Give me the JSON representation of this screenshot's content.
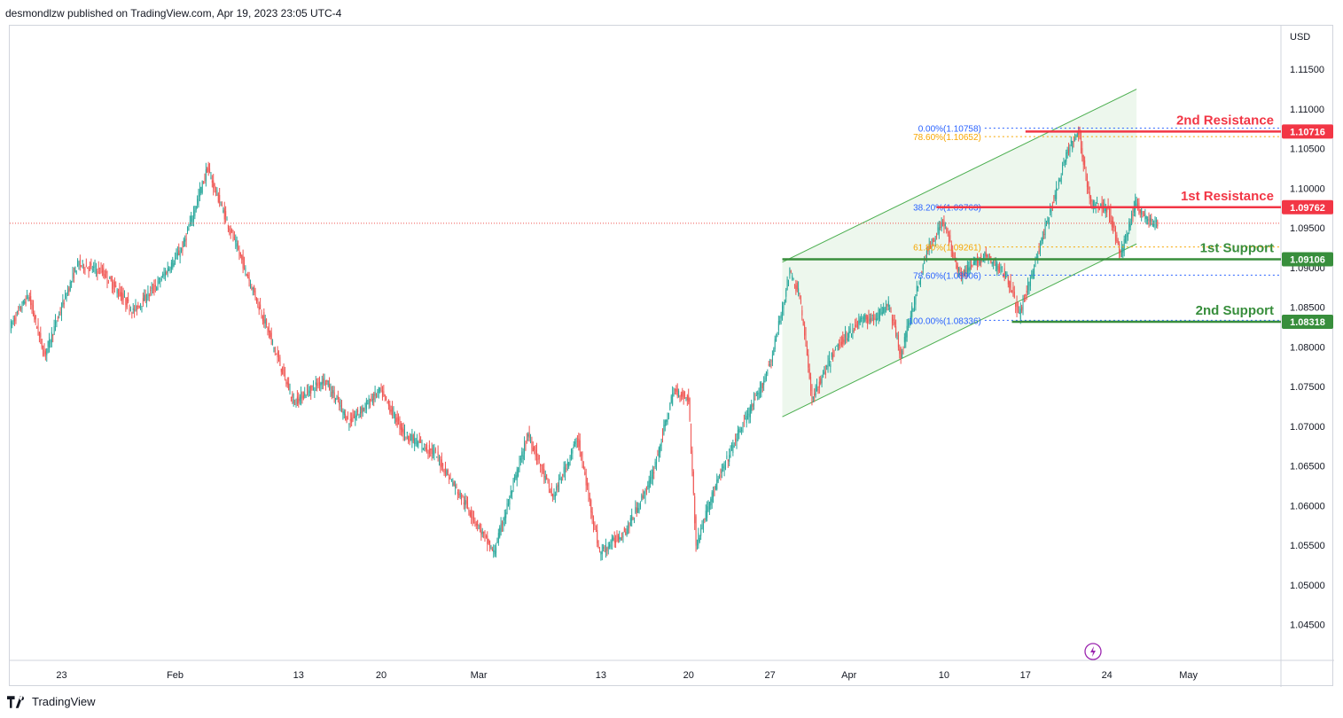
{
  "header": {
    "publisher": "desmondlzw published on TradingView.com, Apr 19, 2023 23:05 UTC-4"
  },
  "footer": {
    "brand": "TradingView"
  },
  "colors": {
    "bull": "#26a69a",
    "bear": "#ef5350",
    "resistance": "#f23645",
    "support": "#388e3c",
    "channel": "#4caf50",
    "fib_blue": "#2962ff",
    "fib_orange": "#f7a600"
  },
  "chart_data": {
    "type": "candlestick",
    "symbol_currency": "USD",
    "ylim": [
      1.0405,
      1.1205
    ],
    "y_ticks": [
      1.045,
      1.05,
      1.055,
      1.06,
      1.065,
      1.07,
      1.075,
      1.08,
      1.085,
      1.09,
      1.095,
      1.1,
      1.105,
      1.11,
      1.115
    ],
    "y_tick_labels": [
      "1.04500",
      "1.05000",
      "1.05500",
      "1.06000",
      "1.06500",
      "1.07000",
      "1.07500",
      "1.08000",
      "1.08500",
      "1.09000",
      "1.09500",
      "1.10000",
      "1.10500",
      "1.11000",
      "1.11500"
    ],
    "x_ticks": [
      "23",
      "Feb",
      "13",
      "20",
      "Mar",
      "13",
      "20",
      "27",
      "Apr",
      "10",
      "17",
      "24",
      "May"
    ],
    "x_tick_bars": [
      42,
      134,
      234,
      301,
      380,
      479,
      550,
      616,
      680,
      757,
      823,
      889,
      955
    ],
    "bars_total": 1030,
    "current_price": 1.0956,
    "levels": [
      {
        "name": "2nd Resistance",
        "value": 1.10716,
        "label": "1.10716",
        "kind": "resistance",
        "from_bar": 823
      },
      {
        "name": "1st Resistance",
        "value": 1.09762,
        "label": "1.09762",
        "kind": "resistance",
        "from_bar": 751
      },
      {
        "name": "1st Support",
        "value": 1.09106,
        "label": "1.09106",
        "kind": "support",
        "from_bar": 626
      },
      {
        "name": "2nd Support",
        "value": 1.08318,
        "label": "1.08318",
        "kind": "support",
        "from_bar": 812
      }
    ],
    "channel": {
      "upper": [
        [
          626,
          1.0907
        ],
        [
          913,
          1.1125
        ]
      ],
      "lower": [
        [
          626,
          1.0712
        ],
        [
          913,
          1.093
        ]
      ],
      "box_end_bar": 913
    },
    "fibonacci": [
      {
        "label": "0.00%(1.10758)",
        "value": 1.10758,
        "color": "blue"
      },
      {
        "label": "100.00%(1.08336)",
        "value": 1.08336,
        "color": "blue"
      },
      {
        "label": "38.20%(1.09763)",
        "value": 1.09763,
        "color": "blue"
      },
      {
        "label": "61.80%(1.09261)",
        "value": 1.09261,
        "color": "orange"
      },
      {
        "label": "78.60%(1.08906)",
        "value": 1.08906,
        "color": "blue"
      },
      {
        "label": "78.60%(1.10652)",
        "value": 1.10652,
        "color": "orange"
      }
    ],
    "swings": [
      [
        0,
        1.0825
      ],
      [
        15,
        1.0865
      ],
      [
        28,
        1.079
      ],
      [
        55,
        1.0905
      ],
      [
        75,
        1.0895
      ],
      [
        100,
        1.0845
      ],
      [
        120,
        1.088
      ],
      [
        140,
        1.0925
      ],
      [
        160,
        1.1025
      ],
      [
        178,
        1.095
      ],
      [
        200,
        1.086
      ],
      [
        230,
        1.073
      ],
      [
        255,
        1.076
      ],
      [
        275,
        1.0705
      ],
      [
        300,
        1.0745
      ],
      [
        320,
        1.069
      ],
      [
        345,
        1.0665
      ],
      [
        370,
        1.06
      ],
      [
        392,
        1.054
      ],
      [
        420,
        1.069
      ],
      [
        440,
        1.061
      ],
      [
        460,
        1.0685
      ],
      [
        478,
        1.054
      ],
      [
        500,
        1.057
      ],
      [
        520,
        1.0635
      ],
      [
        538,
        1.0745
      ],
      [
        550,
        1.0735
      ],
      [
        556,
        1.055
      ],
      [
        568,
        1.061
      ],
      [
        590,
        1.069
      ],
      [
        608,
        1.0745
      ],
      [
        618,
        1.079
      ],
      [
        632,
        1.0895
      ],
      [
        640,
        1.0865
      ],
      [
        650,
        1.0735
      ],
      [
        670,
        1.08
      ],
      [
        690,
        1.0835
      ],
      [
        700,
        1.0835
      ],
      [
        712,
        1.0855
      ],
      [
        722,
        1.079
      ],
      [
        742,
        1.0915
      ],
      [
        756,
        1.096
      ],
      [
        770,
        1.089
      ],
      [
        790,
        1.0915
      ],
      [
        808,
        1.089
      ],
      [
        818,
        1.084
      ],
      [
        842,
        1.0965
      ],
      [
        858,
        1.105
      ],
      [
        866,
        1.107
      ],
      [
        876,
        1.098
      ],
      [
        890,
        1.0975
      ],
      [
        900,
        1.0915
      ],
      [
        912,
        1.098
      ],
      [
        922,
        1.096
      ],
      [
        930,
        1.0956
      ]
    ]
  }
}
